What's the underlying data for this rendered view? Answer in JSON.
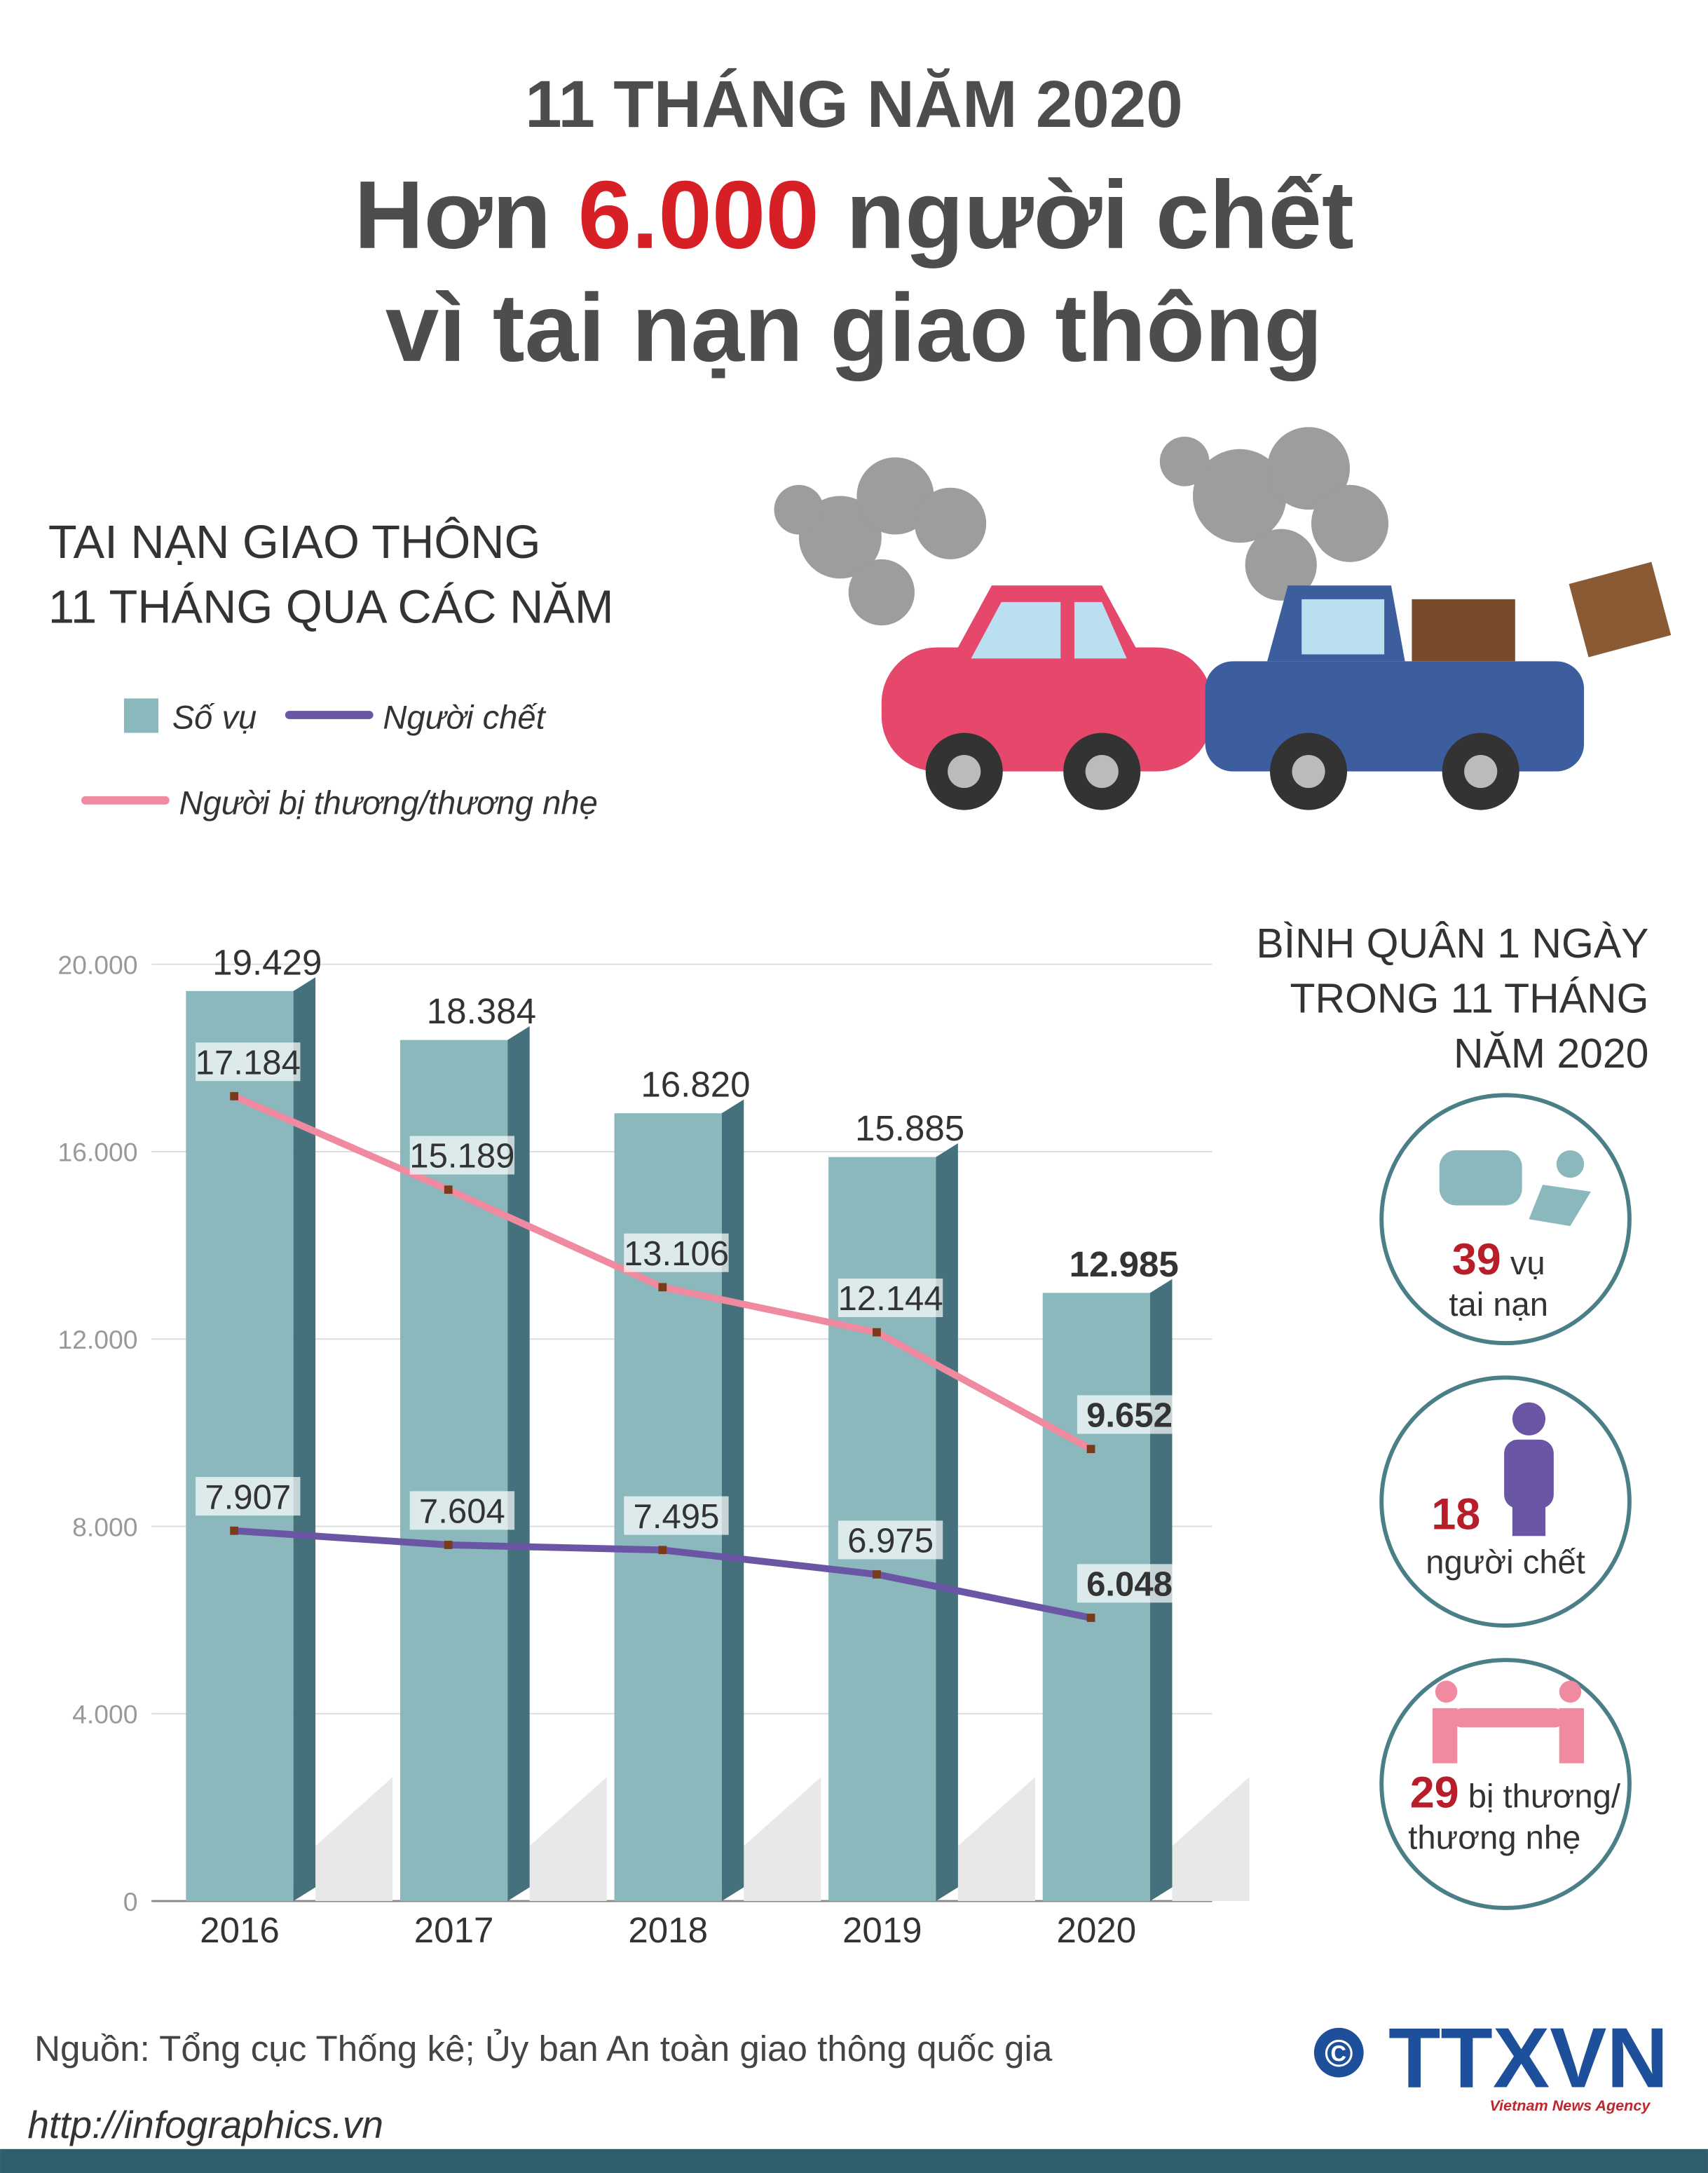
{
  "header": {
    "kicker": "11 THÁNG NĂM 2020",
    "title_prefix": "Hơn",
    "title_highlight": "6.000",
    "title_suffix": "người chết",
    "title_line2": "vì tai nạn giao thông"
  },
  "chart_heading": [
    "TAI NẠN GIAO THÔNG",
    "11 THÁNG QUA CÁC NĂM"
  ],
  "chart_data": {
    "type": "bar",
    "categories": [
      "2016",
      "2017",
      "2018",
      "2019",
      "2020"
    ],
    "series": [
      {
        "name": "Số vụ",
        "type": "bar",
        "color": "#8ab8bd",
        "values": [
          19429,
          18384,
          16820,
          15885,
          12985
        ],
        "value_labels": [
          "19.429",
          "18.384",
          "16.820",
          "15.885",
          "12.985"
        ]
      },
      {
        "name": "Người chết",
        "type": "line",
        "color": "#6a56a5",
        "values": [
          7907,
          7604,
          7495,
          6975,
          6048
        ],
        "value_labels": [
          "7.907",
          "7.604",
          "7.495",
          "6.975",
          "6.048"
        ]
      },
      {
        "name": "Người bị thương/thương nhẹ",
        "type": "line",
        "color": "#f08aa0",
        "values": [
          17184,
          15189,
          13106,
          12144,
          9652
        ],
        "value_labels": [
          "17.184",
          "15.189",
          "13.106",
          "12.144",
          "9.652"
        ]
      }
    ],
    "ylim": [
      0,
      20000
    ],
    "yticks": [
      0,
      {
        "value": 4000,
        "label": "4.000"
      },
      {
        "value": 8000,
        "label": "8.000"
      },
      {
        "value": 12000,
        "label": "12.000"
      },
      {
        "value": 16000,
        "label": "16.000"
      },
      {
        "value": 20000,
        "label": "20.000"
      }
    ],
    "grid": true
  },
  "daily": {
    "heading": [
      "BÌNH QUÂN 1 NGÀY",
      "TRONG 11 THÁNG",
      "NĂM 2020"
    ],
    "stats": [
      {
        "number": "39",
        "label": [
          "vụ",
          "tai nạn"
        ]
      },
      {
        "number": "18",
        "label": [
          "người chết"
        ]
      },
      {
        "number": "29",
        "label": [
          "bị thương/",
          "thương nhẹ"
        ]
      }
    ]
  },
  "source": "Nguồn: Tổng cục Thống kê; Ủy ban An toàn giao thông quốc gia",
  "footer": {
    "url": "http://infographics.vn",
    "copyright": "©",
    "logo": "TTXVN",
    "agency": "Vietnam News Agency"
  }
}
